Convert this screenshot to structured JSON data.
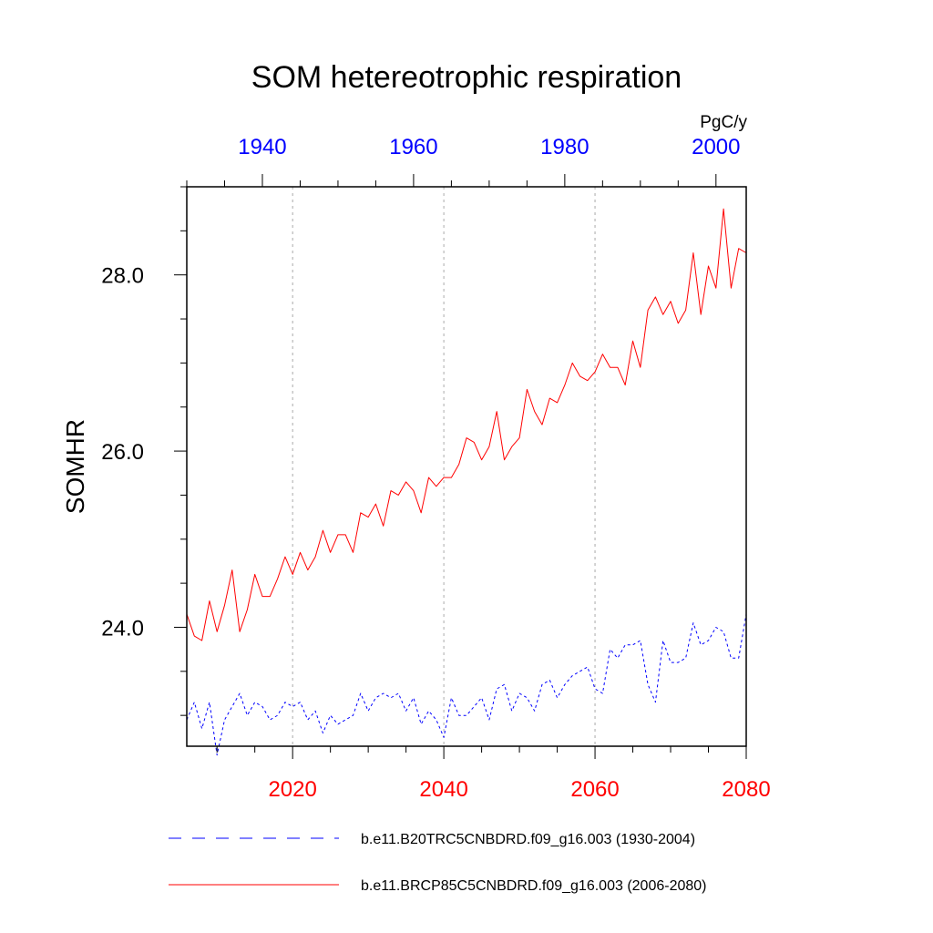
{
  "chart_data": {
    "type": "line",
    "title": "SOM hetereotrophic respiration",
    "units": "PgC/y",
    "ylabel": "SOMHR",
    "xlabel": "",
    "ylim": [
      22.65,
      29.0
    ],
    "yticks": [
      24.0,
      26.0,
      28.0
    ],
    "ytick_labels": [
      "24.0",
      "26.0",
      "28.0"
    ],
    "ytick_minor_step": 0.5,
    "grid": "vertical dashed lines at bottom-axis major ticks",
    "bottom_axis": {
      "color": "#ff0000",
      "range": [
        2006,
        2080
      ],
      "ticks": [
        2020,
        2040,
        2060,
        2080
      ],
      "tick_labels": [
        "2020",
        "2040",
        "2060",
        "2080"
      ],
      "minor_step": 5
    },
    "top_axis": {
      "color": "#0000ff",
      "range": [
        1930,
        2004
      ],
      "ticks": [
        1940,
        1960,
        1980,
        2000
      ],
      "tick_labels": [
        "1940",
        "1960",
        "1980",
        "2000"
      ],
      "minor_step": 5
    },
    "legend_placement": "below",
    "series": [
      {
        "name": "b.e11.B20TRC5CNBDRD.f09_g16.003 (1930-2004)",
        "color": "#0000ff",
        "dash": "dashed",
        "axis": "top",
        "x_start": 1930,
        "values": [
          22.95,
          23.15,
          22.85,
          23.15,
          22.55,
          22.95,
          23.1,
          23.25,
          23.0,
          23.15,
          23.1,
          22.95,
          23.0,
          23.15,
          23.1,
          23.15,
          22.95,
          23.05,
          22.8,
          23.0,
          22.9,
          22.95,
          23.0,
          23.25,
          23.05,
          23.2,
          23.25,
          23.2,
          23.25,
          23.05,
          23.2,
          22.9,
          23.05,
          22.95,
          22.75,
          23.2,
          23.0,
          23.0,
          23.1,
          23.2,
          22.95,
          23.3,
          23.35,
          23.05,
          23.25,
          23.2,
          23.05,
          23.35,
          23.4,
          23.2,
          23.35,
          23.45,
          23.5,
          23.55,
          23.3,
          23.25,
          23.75,
          23.65,
          23.8,
          23.8,
          23.85,
          23.35,
          23.15,
          23.85,
          23.6,
          23.6,
          23.65,
          24.05,
          23.8,
          23.85,
          24.0,
          23.95,
          23.65,
          23.65,
          24.15
        ]
      },
      {
        "name": "b.e11.BRCP85C5CNBDRD.f09_g16.003 (2006-2080)",
        "color": "#ff0000",
        "dash": "solid",
        "axis": "bottom",
        "x_start": 2006,
        "values": [
          24.15,
          23.9,
          23.85,
          24.3,
          23.95,
          24.25,
          24.65,
          23.95,
          24.2,
          24.6,
          24.35,
          24.35,
          24.55,
          24.8,
          24.6,
          24.85,
          24.65,
          24.8,
          25.1,
          24.85,
          25.05,
          25.05,
          24.85,
          25.3,
          25.25,
          25.4,
          25.15,
          25.55,
          25.5,
          25.65,
          25.55,
          25.3,
          25.7,
          25.6,
          25.7,
          25.7,
          25.85,
          26.15,
          26.1,
          25.9,
          26.05,
          26.45,
          25.9,
          26.05,
          26.15,
          26.7,
          26.45,
          26.3,
          26.6,
          26.55,
          26.75,
          27.0,
          26.85,
          26.8,
          26.9,
          27.1,
          26.95,
          26.95,
          26.75,
          27.25,
          26.95,
          27.6,
          27.75,
          27.55,
          27.7,
          27.45,
          27.6,
          28.25,
          27.55,
          28.1,
          27.85,
          28.75,
          27.85,
          28.3,
          28.25
        ]
      }
    ]
  }
}
